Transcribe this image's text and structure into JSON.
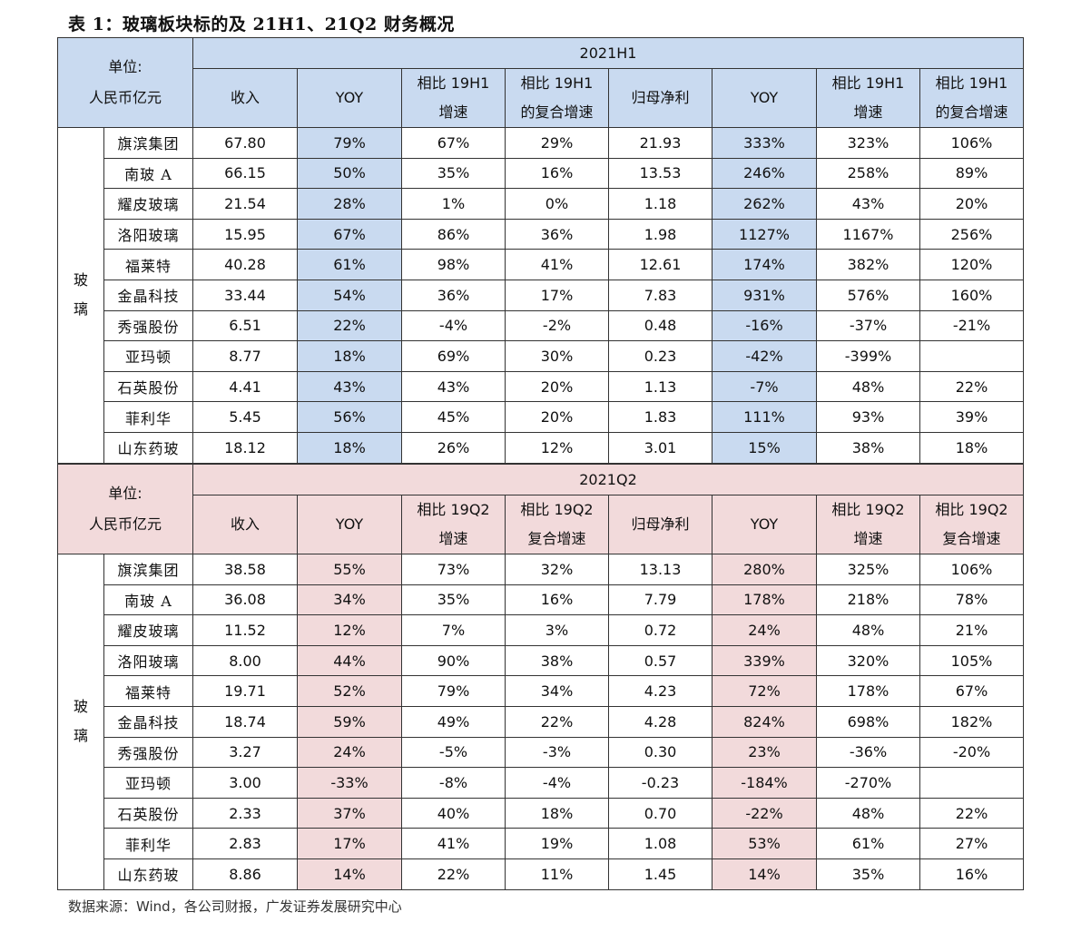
{
  "title": "表 1：玻璃板块标的及 21H1、21Q2 财务概况",
  "source": "数据来源：Wind，各公司财报，广发证券发展研究中心",
  "colors": {
    "h1_header": "#c9daf0",
    "q2_header": "#f2dadb"
  },
  "tables": [
    {
      "unit_line1": "单位:",
      "unit_line2": "人民币亿元",
      "period": "2021H1",
      "category_line1": "玻",
      "category_line2": "璃",
      "columns": [
        [
          "收入"
        ],
        [
          "YOY"
        ],
        [
          "相比 19H1",
          "增速"
        ],
        [
          "相比 19H1",
          "的复合增速"
        ],
        [
          "归母净利"
        ],
        [
          "YOY"
        ],
        [
          "相比 19H1",
          "增速"
        ],
        [
          "相比 19H1",
          "的复合增速"
        ]
      ],
      "rows": [
        [
          "旗滨集团",
          "67.80",
          "79%",
          "67%",
          "29%",
          "21.93",
          "333%",
          "323%",
          "106%"
        ],
        [
          "南玻 A",
          "66.15",
          "50%",
          "35%",
          "16%",
          "13.53",
          "246%",
          "258%",
          "89%"
        ],
        [
          "耀皮玻璃",
          "21.54",
          "28%",
          "1%",
          "0%",
          "1.18",
          "262%",
          "43%",
          "20%"
        ],
        [
          "洛阳玻璃",
          "15.95",
          "67%",
          "86%",
          "36%",
          "1.98",
          "1127%",
          "1167%",
          "256%"
        ],
        [
          "福莱特",
          "40.28",
          "61%",
          "98%",
          "41%",
          "12.61",
          "174%",
          "382%",
          "120%"
        ],
        [
          "金晶科技",
          "33.44",
          "54%",
          "36%",
          "17%",
          "7.83",
          "931%",
          "576%",
          "160%"
        ],
        [
          "秀强股份",
          "6.51",
          "22%",
          "-4%",
          "-2%",
          "0.48",
          "-16%",
          "-37%",
          "-21%"
        ],
        [
          "亚玛顿",
          "8.77",
          "18%",
          "69%",
          "30%",
          "0.23",
          "-42%",
          "-399%",
          ""
        ],
        [
          "石英股份",
          "4.41",
          "43%",
          "43%",
          "20%",
          "1.13",
          "-7%",
          "48%",
          "22%"
        ],
        [
          "菲利华",
          "5.45",
          "56%",
          "45%",
          "20%",
          "1.83",
          "111%",
          "93%",
          "39%"
        ],
        [
          "山东药玻",
          "18.12",
          "18%",
          "26%",
          "12%",
          "3.01",
          "15%",
          "38%",
          "18%"
        ]
      ]
    },
    {
      "unit_line1": "单位:",
      "unit_line2": "人民币亿元",
      "period": "2021Q2",
      "category_line1": "玻",
      "category_line2": "璃",
      "columns": [
        [
          "收入"
        ],
        [
          "YOY"
        ],
        [
          "相比 19Q2",
          "增速"
        ],
        [
          "相比 19Q2",
          "复合增速"
        ],
        [
          "归母净利"
        ],
        [
          "YOY"
        ],
        [
          "相比 19Q2",
          "增速"
        ],
        [
          "相比 19Q2",
          "复合增速"
        ]
      ],
      "rows": [
        [
          "旗滨集团",
          "38.58",
          "55%",
          "73%",
          "32%",
          "13.13",
          "280%",
          "325%",
          "106%"
        ],
        [
          "南玻 A",
          "36.08",
          "34%",
          "35%",
          "16%",
          "7.79",
          "178%",
          "218%",
          "78%"
        ],
        [
          "耀皮玻璃",
          "11.52",
          "12%",
          "7%",
          "3%",
          "0.72",
          "24%",
          "48%",
          "21%"
        ],
        [
          "洛阳玻璃",
          "8.00",
          "44%",
          "90%",
          "38%",
          "0.57",
          "339%",
          "320%",
          "105%"
        ],
        [
          "福莱特",
          "19.71",
          "52%",
          "79%",
          "34%",
          "4.23",
          "72%",
          "178%",
          "67%"
        ],
        [
          "金晶科技",
          "18.74",
          "59%",
          "49%",
          "22%",
          "4.28",
          "824%",
          "698%",
          "182%"
        ],
        [
          "秀强股份",
          "3.27",
          "24%",
          "-5%",
          "-3%",
          "0.30",
          "23%",
          "-36%",
          "-20%"
        ],
        [
          "亚玛顿",
          "3.00",
          "-33%",
          "-8%",
          "-4%",
          "-0.23",
          "-184%",
          "-270%",
          ""
        ],
        [
          "石英股份",
          "2.33",
          "37%",
          "40%",
          "18%",
          "0.70",
          "-22%",
          "48%",
          "22%"
        ],
        [
          "菲利华",
          "2.83",
          "17%",
          "41%",
          "19%",
          "1.08",
          "53%",
          "61%",
          "27%"
        ],
        [
          "山东药玻",
          "8.86",
          "14%",
          "22%",
          "11%",
          "1.45",
          "14%",
          "35%",
          "16%"
        ]
      ]
    }
  ]
}
